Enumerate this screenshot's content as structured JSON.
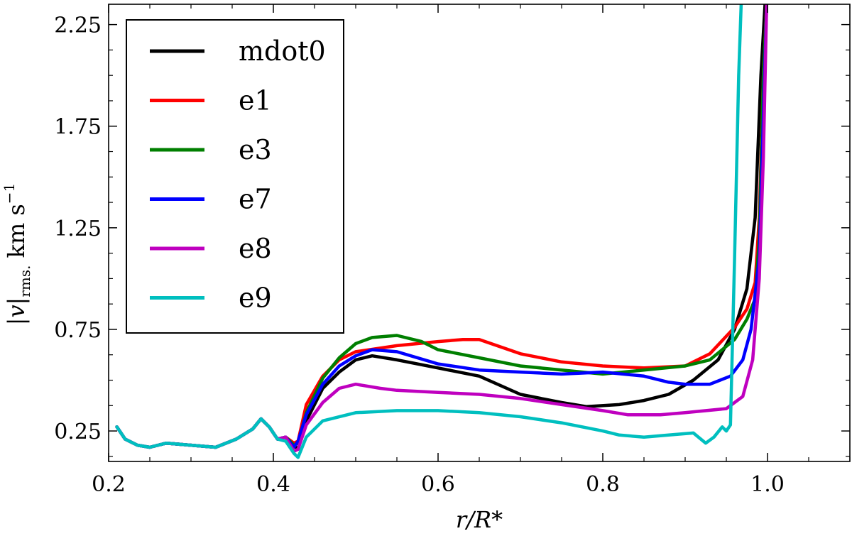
{
  "chart_data": {
    "type": "line",
    "title": "",
    "xlabel": "r/R*",
    "ylabel_main": "|v|",
    "ylabel_sub": "rms.",
    "ylabel_unit": "km s",
    "ylabel_exp": "−1",
    "xlim": [
      0.2,
      1.1
    ],
    "ylim": [
      0.1,
      2.35
    ],
    "xticks": [
      0.2,
      0.4,
      0.6,
      0.8,
      1.0
    ],
    "xtick_labels": [
      "0.2",
      "0.4",
      "0.6",
      "0.8",
      "1.0"
    ],
    "yticks": [
      0.25,
      0.75,
      1.25,
      1.75,
      2.25
    ],
    "ytick_labels": [
      "0.25",
      "0.75",
      "1.25",
      "1.75",
      "2.25"
    ],
    "grid": false,
    "legend_position": "top-left",
    "series": [
      {
        "name": "mdot0",
        "color": "#000000",
        "points": [
          [
            0.21,
            0.27
          ],
          [
            0.22,
            0.21
          ],
          [
            0.235,
            0.18
          ],
          [
            0.25,
            0.17
          ],
          [
            0.27,
            0.19
          ],
          [
            0.3,
            0.18
          ],
          [
            0.33,
            0.17
          ],
          [
            0.355,
            0.21
          ],
          [
            0.375,
            0.26
          ],
          [
            0.385,
            0.31
          ],
          [
            0.395,
            0.27
          ],
          [
            0.405,
            0.21
          ],
          [
            0.415,
            0.22
          ],
          [
            0.425,
            0.18
          ],
          [
            0.43,
            0.16
          ],
          [
            0.44,
            0.3
          ],
          [
            0.46,
            0.46
          ],
          [
            0.48,
            0.54
          ],
          [
            0.5,
            0.6
          ],
          [
            0.52,
            0.62
          ],
          [
            0.55,
            0.6
          ],
          [
            0.6,
            0.56
          ],
          [
            0.65,
            0.52
          ],
          [
            0.7,
            0.43
          ],
          [
            0.75,
            0.39
          ],
          [
            0.78,
            0.37
          ],
          [
            0.82,
            0.38
          ],
          [
            0.85,
            0.4
          ],
          [
            0.88,
            0.43
          ],
          [
            0.91,
            0.5
          ],
          [
            0.94,
            0.6
          ],
          [
            0.96,
            0.75
          ],
          [
            0.975,
            0.95
          ],
          [
            0.985,
            1.3
          ],
          [
            0.992,
            2.0
          ],
          [
            0.997,
            2.35
          ]
        ]
      },
      {
        "name": "e1",
        "color": "#ff0000",
        "points": [
          [
            0.21,
            0.27
          ],
          [
            0.22,
            0.21
          ],
          [
            0.235,
            0.18
          ],
          [
            0.25,
            0.17
          ],
          [
            0.27,
            0.19
          ],
          [
            0.3,
            0.18
          ],
          [
            0.33,
            0.17
          ],
          [
            0.355,
            0.21
          ],
          [
            0.375,
            0.26
          ],
          [
            0.385,
            0.31
          ],
          [
            0.395,
            0.27
          ],
          [
            0.405,
            0.21
          ],
          [
            0.415,
            0.22
          ],
          [
            0.425,
            0.19
          ],
          [
            0.43,
            0.2
          ],
          [
            0.44,
            0.38
          ],
          [
            0.46,
            0.52
          ],
          [
            0.48,
            0.6
          ],
          [
            0.5,
            0.64
          ],
          [
            0.55,
            0.67
          ],
          [
            0.6,
            0.69
          ],
          [
            0.63,
            0.7
          ],
          [
            0.65,
            0.7
          ],
          [
            0.7,
            0.63
          ],
          [
            0.75,
            0.59
          ],
          [
            0.8,
            0.57
          ],
          [
            0.85,
            0.56
          ],
          [
            0.9,
            0.57
          ],
          [
            0.93,
            0.63
          ],
          [
            0.96,
            0.76
          ],
          [
            0.975,
            0.85
          ],
          [
            0.985,
            0.98
          ],
          [
            0.99,
            1.3
          ],
          [
            0.995,
            2.0
          ],
          [
            0.999,
            2.35
          ]
        ]
      },
      {
        "name": "e3",
        "color": "#007f00",
        "points": [
          [
            0.21,
            0.27
          ],
          [
            0.22,
            0.21
          ],
          [
            0.235,
            0.18
          ],
          [
            0.25,
            0.17
          ],
          [
            0.27,
            0.19
          ],
          [
            0.3,
            0.18
          ],
          [
            0.33,
            0.17
          ],
          [
            0.355,
            0.21
          ],
          [
            0.375,
            0.26
          ],
          [
            0.385,
            0.31
          ],
          [
            0.395,
            0.27
          ],
          [
            0.405,
            0.21
          ],
          [
            0.415,
            0.22
          ],
          [
            0.425,
            0.18
          ],
          [
            0.43,
            0.19
          ],
          [
            0.44,
            0.34
          ],
          [
            0.46,
            0.51
          ],
          [
            0.48,
            0.61
          ],
          [
            0.5,
            0.68
          ],
          [
            0.52,
            0.71
          ],
          [
            0.55,
            0.72
          ],
          [
            0.58,
            0.69
          ],
          [
            0.6,
            0.65
          ],
          [
            0.65,
            0.61
          ],
          [
            0.7,
            0.57
          ],
          [
            0.75,
            0.55
          ],
          [
            0.8,
            0.53
          ],
          [
            0.85,
            0.55
          ],
          [
            0.9,
            0.57
          ],
          [
            0.93,
            0.6
          ],
          [
            0.96,
            0.7
          ],
          [
            0.975,
            0.8
          ],
          [
            0.985,
            0.9
          ],
          [
            0.99,
            1.2
          ],
          [
            0.995,
            2.0
          ],
          [
            0.999,
            2.35
          ]
        ]
      },
      {
        "name": "e7",
        "color": "#0000ff",
        "points": [
          [
            0.21,
            0.27
          ],
          [
            0.22,
            0.21
          ],
          [
            0.235,
            0.18
          ],
          [
            0.25,
            0.17
          ],
          [
            0.27,
            0.19
          ],
          [
            0.3,
            0.18
          ],
          [
            0.33,
            0.17
          ],
          [
            0.355,
            0.21
          ],
          [
            0.375,
            0.26
          ],
          [
            0.385,
            0.31
          ],
          [
            0.395,
            0.27
          ],
          [
            0.405,
            0.21
          ],
          [
            0.415,
            0.22
          ],
          [
            0.425,
            0.17
          ],
          [
            0.43,
            0.2
          ],
          [
            0.44,
            0.33
          ],
          [
            0.46,
            0.48
          ],
          [
            0.48,
            0.57
          ],
          [
            0.5,
            0.62
          ],
          [
            0.52,
            0.65
          ],
          [
            0.55,
            0.64
          ],
          [
            0.6,
            0.58
          ],
          [
            0.65,
            0.55
          ],
          [
            0.7,
            0.54
          ],
          [
            0.75,
            0.53
          ],
          [
            0.8,
            0.54
          ],
          [
            0.85,
            0.52
          ],
          [
            0.88,
            0.49
          ],
          [
            0.9,
            0.48
          ],
          [
            0.93,
            0.48
          ],
          [
            0.955,
            0.52
          ],
          [
            0.97,
            0.6
          ],
          [
            0.98,
            0.75
          ],
          [
            0.99,
            1.1
          ],
          [
            0.995,
            1.8
          ],
          [
            0.999,
            2.35
          ]
        ]
      },
      {
        "name": "e8",
        "color": "#bf00bf",
        "points": [
          [
            0.21,
            0.27
          ],
          [
            0.22,
            0.21
          ],
          [
            0.235,
            0.18
          ],
          [
            0.25,
            0.17
          ],
          [
            0.27,
            0.19
          ],
          [
            0.3,
            0.18
          ],
          [
            0.33,
            0.17
          ],
          [
            0.355,
            0.21
          ],
          [
            0.375,
            0.26
          ],
          [
            0.385,
            0.31
          ],
          [
            0.395,
            0.27
          ],
          [
            0.405,
            0.21
          ],
          [
            0.415,
            0.22
          ],
          [
            0.425,
            0.15
          ],
          [
            0.43,
            0.16
          ],
          [
            0.44,
            0.28
          ],
          [
            0.46,
            0.39
          ],
          [
            0.48,
            0.46
          ],
          [
            0.5,
            0.48
          ],
          [
            0.53,
            0.46
          ],
          [
            0.55,
            0.45
          ],
          [
            0.6,
            0.44
          ],
          [
            0.65,
            0.43
          ],
          [
            0.7,
            0.41
          ],
          [
            0.75,
            0.38
          ],
          [
            0.8,
            0.35
          ],
          [
            0.83,
            0.33
          ],
          [
            0.87,
            0.33
          ],
          [
            0.9,
            0.34
          ],
          [
            0.95,
            0.36
          ],
          [
            0.97,
            0.42
          ],
          [
            0.982,
            0.6
          ],
          [
            0.99,
            1.0
          ],
          [
            0.995,
            1.6
          ],
          [
            0.999,
            2.35
          ]
        ]
      },
      {
        "name": "e9",
        "color": "#00bfbf",
        "points": [
          [
            0.21,
            0.27
          ],
          [
            0.22,
            0.21
          ],
          [
            0.235,
            0.18
          ],
          [
            0.25,
            0.17
          ],
          [
            0.27,
            0.19
          ],
          [
            0.3,
            0.18
          ],
          [
            0.33,
            0.17
          ],
          [
            0.355,
            0.21
          ],
          [
            0.375,
            0.26
          ],
          [
            0.385,
            0.31
          ],
          [
            0.395,
            0.27
          ],
          [
            0.405,
            0.21
          ],
          [
            0.415,
            0.2
          ],
          [
            0.425,
            0.14
          ],
          [
            0.43,
            0.12
          ],
          [
            0.44,
            0.22
          ],
          [
            0.46,
            0.3
          ],
          [
            0.5,
            0.34
          ],
          [
            0.55,
            0.35
          ],
          [
            0.6,
            0.35
          ],
          [
            0.65,
            0.34
          ],
          [
            0.7,
            0.32
          ],
          [
            0.75,
            0.29
          ],
          [
            0.8,
            0.25
          ],
          [
            0.82,
            0.23
          ],
          [
            0.85,
            0.22
          ],
          [
            0.88,
            0.23
          ],
          [
            0.91,
            0.24
          ],
          [
            0.925,
            0.19
          ],
          [
            0.935,
            0.22
          ],
          [
            0.945,
            0.27
          ],
          [
            0.95,
            0.25
          ],
          [
            0.955,
            0.28
          ],
          [
            0.96,
            1.1
          ],
          [
            0.965,
            2.0
          ],
          [
            0.968,
            2.35
          ]
        ]
      }
    ]
  }
}
